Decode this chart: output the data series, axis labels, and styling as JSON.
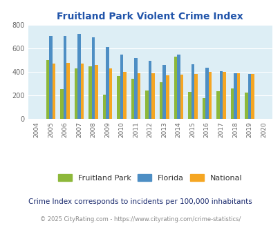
{
  "title": "Fruitland Park Violent Crime Index",
  "years": [
    2004,
    2005,
    2006,
    2007,
    2008,
    2009,
    2010,
    2011,
    2012,
    2013,
    2014,
    2015,
    2016,
    2017,
    2018,
    2019,
    2020
  ],
  "fruitland_park": [
    null,
    500,
    250,
    430,
    445,
    207,
    365,
    343,
    238,
    310,
    527,
    228,
    177,
    233,
    255,
    221,
    null
  ],
  "florida": [
    null,
    710,
    710,
    722,
    693,
    612,
    547,
    519,
    493,
    460,
    546,
    464,
    434,
    407,
    388,
    384,
    null
  ],
  "national": [
    null,
    468,
    477,
    468,
    457,
    430,
    401,
    389,
    390,
    368,
    376,
    383,
    399,
    401,
    387,
    380,
    null
  ],
  "color_fp": "#8db83a",
  "color_fl": "#4d8ec4",
  "color_nat": "#f5a623",
  "bg_color": "#ddeef5",
  "title_color": "#2255aa",
  "subtitle_color": "#1a2a6e",
  "footer_color": "#888888",
  "footer_url_color": "#4d8ec4",
  "ylim": [
    0,
    800
  ],
  "yticks": [
    0,
    200,
    400,
    600,
    800
  ],
  "subtitle": "Crime Index corresponds to incidents per 100,000 inhabitants",
  "footer": "© 2025 CityRating.com - https://www.cityrating.com/crime-statistics/",
  "legend_labels": [
    "Fruitland Park",
    "Florida",
    "National"
  ]
}
